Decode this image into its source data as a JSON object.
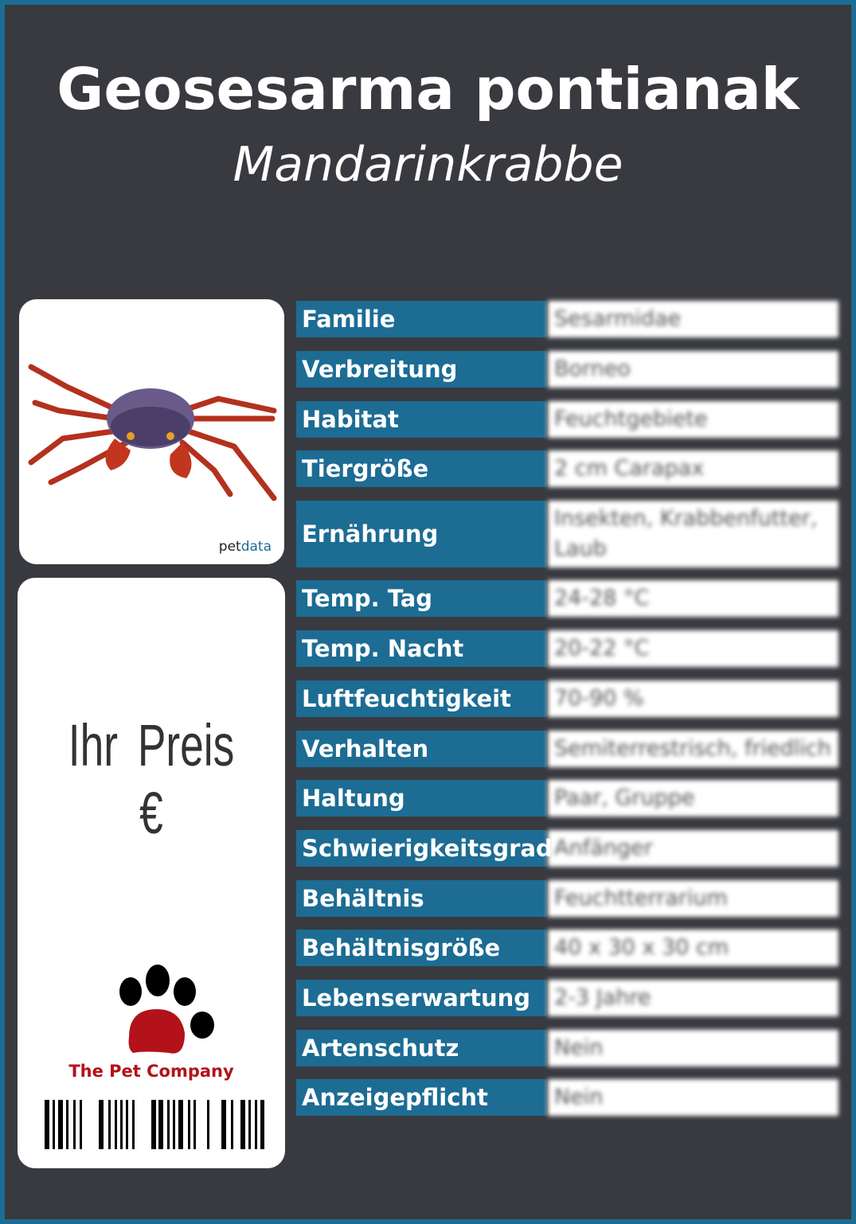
{
  "header": {
    "title": "Geosesarma pontianak",
    "subtitle": "Mandarinkrabbe"
  },
  "image_card": {
    "brand_prefix": "pet",
    "brand_suffix": "data"
  },
  "price_card": {
    "price_label": "Ihr Preis €",
    "company": "The Pet Company"
  },
  "colors": {
    "accent": "#1d6c94",
    "background": "#393a3f",
    "logo_red": "#b3121b"
  },
  "facts": [
    {
      "label": "Familie",
      "value": "Sesarmidae"
    },
    {
      "label": "Verbreitung",
      "value": "Borneo"
    },
    {
      "label": "Habitat",
      "value": "Feuchtgebiete"
    },
    {
      "label": "Tiergröße",
      "value": "2 cm Carapax"
    },
    {
      "label": "Ernährung",
      "value": "Insekten, Krabbenfutter, Laub"
    },
    {
      "label": "Temp. Tag",
      "value": "24-28 °C"
    },
    {
      "label": "Temp. Nacht",
      "value": "20-22 °C"
    },
    {
      "label": "Luftfeuchtigkeit",
      "value": "70-90 %"
    },
    {
      "label": "Verhalten",
      "value": "Semiterrestrisch, friedlich"
    },
    {
      "label": "Haltung",
      "value": "Paar, Gruppe"
    },
    {
      "label": "Schwierigkeitsgrad",
      "value": "Anfänger"
    },
    {
      "label": "Behältnis",
      "value": "Feuchtterrarium"
    },
    {
      "label": "Behältnisgröße",
      "value": "40 x 30 x 30 cm"
    },
    {
      "label": "Lebenserwartung",
      "value": "2-3 Jahre"
    },
    {
      "label": "Artenschutz",
      "value": "Nein"
    },
    {
      "label": "Anzeigepflicht",
      "value": "Nein"
    }
  ]
}
